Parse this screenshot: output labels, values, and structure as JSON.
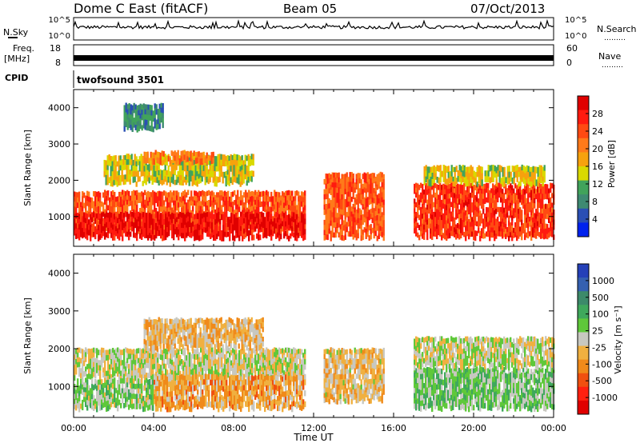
{
  "header": {
    "station": "Dome C East (fitACF)",
    "beam": "Beam 05",
    "date": "07/Oct/2013"
  },
  "strips": {
    "nsky_label": "N.Sky",
    "nsearch_label": "N.Search",
    "nsky_ticks": [
      "10^5",
      "10^0"
    ],
    "nsearch_ticks": [
      "10^5",
      "10^0"
    ],
    "freq_label": "Freq.",
    "freq_unit": "[MHz]",
    "freq_ticks": [
      "18",
      "8"
    ],
    "nave_label": "Nave",
    "nave_ticks": [
      "60",
      "0"
    ],
    "cpid_label": "CPID",
    "cpid_value": "twofsound 3501",
    "dots": "………"
  },
  "colors": {
    "power": [
      "#0022ee",
      "#2a4fb4",
      "#3e8a72",
      "#41a35b",
      "#d9d900",
      "#f7a20d",
      "#ff7a1a",
      "#ff4a12",
      "#ff1a0f",
      "#e00000"
    ],
    "velocity": [
      "#2540b8",
      "#3560b0",
      "#3c8a6a",
      "#3fa85c",
      "#5fc83a",
      "#c8c8c0",
      "#f0b040",
      "#f08a1a",
      "#f05010",
      "#ff2010",
      "#e00000"
    ]
  },
  "chart_data": [
    {
      "type": "heatmap",
      "title": "Power",
      "ylabel": "Slant Range [km]",
      "xlabel": "",
      "xlim": [
        "00:00",
        "24:00"
      ],
      "ylim": [
        180,
        4500
      ],
      "yticks": [
        "1000",
        "2000",
        "3000",
        "4000"
      ],
      "xticks": [
        "00:00",
        "04:00",
        "08:00",
        "12:00",
        "16:00",
        "20:00",
        "00:00"
      ],
      "colorbar": {
        "label": "Power [dB]",
        "ticks": [
          "4",
          "8",
          "12",
          "16",
          "20",
          "24",
          "28"
        ],
        "range": [
          0,
          30
        ]
      },
      "bands": [
        {
          "x0": 0.0,
          "x1": 11.6,
          "y0": 600,
          "y1": 1700,
          "v": 22
        },
        {
          "x0": 0.0,
          "x1": 11.6,
          "y0": 400,
          "y1": 1100,
          "v": 27
        },
        {
          "x0": 1.5,
          "x1": 9.0,
          "y0": 1900,
          "y1": 2700,
          "v": 14
        },
        {
          "x0": 3.5,
          "x1": 7.0,
          "y0": 2500,
          "y1": 2800,
          "v": 20
        },
        {
          "x0": 2.5,
          "x1": 4.5,
          "y0": 3400,
          "y1": 4100,
          "v": 8
        },
        {
          "x0": 12.5,
          "x1": 15.5,
          "y0": 400,
          "y1": 2200,
          "v": 22
        },
        {
          "x0": 17.0,
          "x1": 24.0,
          "y0": 400,
          "y1": 1900,
          "v": 24
        },
        {
          "x0": 17.5,
          "x1": 23.5,
          "y0": 1900,
          "y1": 2400,
          "v": 14
        }
      ]
    },
    {
      "type": "heatmap",
      "title": "Velocity",
      "ylabel": "Slant Range [km]",
      "xlabel": "Time UT",
      "xlim": [
        "00:00",
        "24:00"
      ],
      "ylim": [
        180,
        4500
      ],
      "yticks": [
        "1000",
        "2000",
        "3000",
        "4000"
      ],
      "xticks": [
        "00:00",
        "04:00",
        "08:00",
        "12:00",
        "16:00",
        "20:00",
        "00:00"
      ],
      "colorbar": {
        "label": "Velocity [m s⁻¹]",
        "ticks": [
          "1000",
          "500",
          "100",
          "25",
          "-25",
          "-100",
          "-500",
          "-1000"
        ],
        "range": [
          -1200,
          1200
        ]
      },
      "bands": [
        {
          "x0": 0.0,
          "x1": 11.6,
          "y0": 1200,
          "y1": 2000,
          "v": 0
        },
        {
          "x0": 0.0,
          "x1": 4.0,
          "y0": 400,
          "y1": 1200,
          "v": 150
        },
        {
          "x0": 4.0,
          "x1": 11.6,
          "y0": 400,
          "y1": 1300,
          "v": -300
        },
        {
          "x0": 3.5,
          "x1": 9.5,
          "y0": 2000,
          "y1": 2800,
          "v": -200
        },
        {
          "x0": 12.5,
          "x1": 15.5,
          "y0": 600,
          "y1": 2000,
          "v": -150
        },
        {
          "x0": 17.0,
          "x1": 24.0,
          "y0": 400,
          "y1": 1500,
          "v": 200
        },
        {
          "x0": 17.0,
          "x1": 24.0,
          "y0": 1500,
          "y1": 2300,
          "v": 0
        }
      ]
    }
  ]
}
